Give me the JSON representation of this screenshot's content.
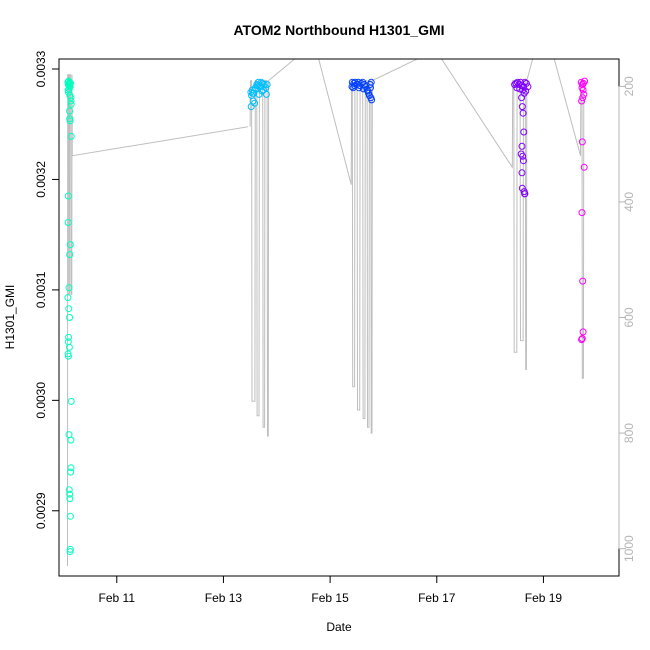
{
  "chart_data": {
    "type": "scatter",
    "title": "ATOM2 Northbound H1301_GMI",
    "xlabel": "Date",
    "ylabel": "H1301_GMI",
    "xlim": [
      "2016-02-09T22:00",
      "2016-02-20T10:00"
    ],
    "ylim": [
      0.00285,
      0.0033
    ],
    "y_ticks": [
      "0.0029",
      "0.0030",
      "0.0031",
      "0.0032",
      "0.0033"
    ],
    "x_ticks": [
      {
        "date": "2016-02-11",
        "label": "Feb 11"
      },
      {
        "date": "2016-02-13",
        "label": "Feb 13"
      },
      {
        "date": "2016-02-15",
        "label": "Feb 15"
      },
      {
        "date": "2016-02-17",
        "label": "Feb 17"
      },
      {
        "date": "2016-02-19",
        "label": "Feb 19"
      }
    ],
    "y2lim": [
      1030,
      170
    ],
    "y2_ticks": [
      "200",
      "400",
      "600",
      "800",
      "1000"
    ],
    "grid": false,
    "point_style": "open-circle",
    "line_color": "#bebebe",
    "series": [
      {
        "color": "#00ffbf",
        "points": [
          [
            "2016-02-10T02:00",
            0.003288
          ],
          [
            "2016-02-10T02:10",
            0.003286
          ],
          [
            "2016-02-10T02:20",
            0.003289
          ],
          [
            "2016-02-10T02:30",
            0.003287
          ],
          [
            "2016-02-10T02:40",
            0.003285
          ],
          [
            "2016-02-10T02:50",
            0.003288
          ],
          [
            "2016-02-10T03:00",
            0.003284
          ],
          [
            "2016-02-10T03:10",
            0.003287
          ],
          [
            "2016-02-10T02:05",
            0.003281
          ],
          [
            "2016-02-10T02:15",
            0.003279
          ],
          [
            "2016-02-10T02:35",
            0.003282
          ],
          [
            "2016-02-10T02:55",
            0.003276
          ],
          [
            "2016-02-10T03:20",
            0.003274
          ],
          [
            "2016-02-10T03:25",
            0.003271
          ],
          [
            "2016-02-10T03:30",
            0.003268
          ],
          [
            "2016-02-10T02:45",
            0.003262
          ],
          [
            "2016-02-10T02:50",
            0.003255
          ],
          [
            "2016-02-10T03:00",
            0.003253
          ],
          [
            "2016-02-10T03:30",
            0.003239
          ],
          [
            "2016-02-10T02:10",
            0.003185
          ],
          [
            "2016-02-10T02:05",
            0.003161
          ],
          [
            "2016-02-10T03:05",
            0.003141
          ],
          [
            "2016-02-10T02:50",
            0.003132
          ],
          [
            "2016-02-10T02:30",
            0.003102
          ],
          [
            "2016-02-10T02:00",
            0.003093
          ],
          [
            "2016-02-10T02:25",
            0.003083
          ],
          [
            "2016-02-10T02:45",
            0.003075
          ],
          [
            "2016-02-10T02:10",
            0.003053
          ],
          [
            "2016-02-10T02:40",
            0.003048
          ],
          [
            "2016-02-10T02:05",
            0.003042
          ],
          [
            "2016-02-10T02:15",
            0.00304
          ],
          [
            "2016-02-10T02:20",
            0.003057
          ],
          [
            "2016-02-10T03:30",
            0.002999
          ],
          [
            "2016-02-10T02:30",
            0.002969
          ],
          [
            "2016-02-10T03:20",
            0.002964
          ],
          [
            "2016-02-10T03:15",
            0.002935
          ],
          [
            "2016-02-10T03:25",
            0.002939
          ],
          [
            "2016-02-10T02:35",
            0.002919
          ],
          [
            "2016-02-10T02:45",
            0.002915
          ],
          [
            "2016-02-10T02:55",
            0.002911
          ],
          [
            "2016-02-10T03:10",
            0.002895
          ],
          [
            "2016-02-10T03:05",
            0.002865
          ],
          [
            "2016-02-10T03:00",
            0.002863
          ]
        ],
        "profile": [
          [
            "2016-02-10T01:50",
            1030
          ],
          [
            "2016-02-10T01:55",
            180
          ],
          [
            "2016-02-10T02:20",
            180
          ],
          [
            "2016-02-10T02:25",
            560
          ],
          [
            "2016-02-10T02:40",
            560
          ],
          [
            "2016-02-10T02:45",
            180
          ],
          [
            "2016-02-10T03:15",
            180
          ],
          [
            "2016-02-10T03:20",
            560
          ],
          [
            "2016-02-10T03:45",
            560
          ],
          [
            "2016-02-10T03:50",
            180
          ],
          [
            "2016-02-10T04:00",
            320
          ],
          [
            "2016-02-13T11:00",
            270
          ]
        ]
      },
      {
        "color": "#00bfff",
        "points": [
          [
            "2016-02-13T12:20",
            0.003279
          ],
          [
            "2016-02-13T13:00",
            0.003281
          ],
          [
            "2016-02-13T13:40",
            0.003278
          ],
          [
            "2016-02-13T14:20",
            0.003283
          ],
          [
            "2016-02-13T15:00",
            0.003286
          ],
          [
            "2016-02-13T15:40",
            0.003288
          ],
          [
            "2016-02-13T16:20",
            0.003285
          ],
          [
            "2016-02-13T17:00",
            0.003288
          ],
          [
            "2016-02-13T17:40",
            0.003287
          ],
          [
            "2016-02-13T18:20",
            0.003286
          ],
          [
            "2016-02-13T19:00",
            0.003283
          ],
          [
            "2016-02-13T19:40",
            0.003286
          ],
          [
            "2016-02-13T12:40",
            0.003276
          ],
          [
            "2016-02-13T13:20",
            0.003271
          ],
          [
            "2016-02-13T14:00",
            0.003269
          ],
          [
            "2016-02-13T12:30",
            0.003266
          ],
          [
            "2016-02-13T14:40",
            0.003282
          ],
          [
            "2016-02-13T16:00",
            0.003277
          ],
          [
            "2016-02-13T18:00",
            0.003281
          ],
          [
            "2016-02-13T15:20",
            0.003285
          ],
          [
            "2016-02-13T16:40",
            0.003284
          ],
          [
            "2016-02-13T17:20",
            0.00328
          ],
          [
            "2016-02-13T13:10",
            0.003278
          ],
          [
            "2016-02-13T19:20",
            0.003277
          ]
        ],
        "profile": [
          [
            "2016-02-13T12:00",
            270
          ],
          [
            "2016-02-13T12:10",
            190
          ],
          [
            "2016-02-13T12:40",
            190
          ],
          [
            "2016-02-13T12:50",
            745
          ],
          [
            "2016-02-13T14:10",
            745
          ],
          [
            "2016-02-13T14:20",
            190
          ],
          [
            "2016-02-13T15:00",
            190
          ],
          [
            "2016-02-13T15:10",
            770
          ],
          [
            "2016-02-13T16:00",
            770
          ],
          [
            "2016-02-13T16:10",
            190
          ],
          [
            "2016-02-13T17:40",
            190
          ],
          [
            "2016-02-13T17:50",
            790
          ],
          [
            "2016-02-13T18:30",
            790
          ],
          [
            "2016-02-13T18:40",
            190
          ],
          [
            "2016-02-13T19:40",
            190
          ],
          [
            "2016-02-13T19:50",
            805
          ],
          [
            "2016-02-13T20:10",
            805
          ],
          [
            "2016-02-13T20:20",
            190
          ],
          [
            "2016-02-14T12:00",
            140
          ]
        ]
      },
      {
        "color": "#0040ff",
        "points": [
          [
            "2016-02-15T10:00",
            0.003288
          ],
          [
            "2016-02-15T10:40",
            0.003287
          ],
          [
            "2016-02-15T11:20",
            0.003288
          ],
          [
            "2016-02-15T12:00",
            0.003286
          ],
          [
            "2016-02-15T12:40",
            0.003288
          ],
          [
            "2016-02-15T13:20",
            0.003285
          ],
          [
            "2016-02-15T14:00",
            0.003287
          ],
          [
            "2016-02-15T14:40",
            0.003288
          ],
          [
            "2016-02-15T15:20",
            0.003286
          ],
          [
            "2016-02-15T16:00",
            0.003284
          ],
          [
            "2016-02-15T16:40",
            0.003281
          ],
          [
            "2016-02-15T17:20",
            0.003278
          ],
          [
            "2016-02-15T18:00",
            0.003286
          ],
          [
            "2016-02-15T18:20",
            0.003274
          ],
          [
            "2016-02-15T18:40",
            0.003272
          ],
          [
            "2016-02-15T09:50",
            0.003284
          ],
          [
            "2016-02-15T10:20",
            0.003283
          ],
          [
            "2016-02-15T11:00",
            0.003285
          ],
          [
            "2016-02-15T13:00",
            0.003283
          ],
          [
            "2016-02-15T15:00",
            0.003282
          ],
          [
            "2016-02-15T17:00",
            0.00328
          ],
          [
            "2016-02-15T17:40",
            0.003276
          ],
          [
            "2016-02-15T18:10",
            0.003283
          ],
          [
            "2016-02-15T18:30",
            0.003288
          ]
        ],
        "profile": [
          [
            "2016-02-14T18:00",
            140
          ],
          [
            "2016-02-15T09:30",
            370
          ],
          [
            "2016-02-15T09:40",
            190
          ],
          [
            "2016-02-15T10:00",
            190
          ],
          [
            "2016-02-15T10:10",
            720
          ],
          [
            "2016-02-15T11:00",
            720
          ],
          [
            "2016-02-15T11:10",
            190
          ],
          [
            "2016-02-15T12:10",
            190
          ],
          [
            "2016-02-15T12:20",
            760
          ],
          [
            "2016-02-15T13:20",
            760
          ],
          [
            "2016-02-15T13:30",
            190
          ],
          [
            "2016-02-15T14:40",
            190
          ],
          [
            "2016-02-15T14:50",
            775
          ],
          [
            "2016-02-15T15:40",
            775
          ],
          [
            "2016-02-15T15:50",
            190
          ],
          [
            "2016-02-15T16:40",
            190
          ],
          [
            "2016-02-15T16:50",
            790
          ],
          [
            "2016-02-15T17:30",
            790
          ],
          [
            "2016-02-15T17:40",
            190
          ],
          [
            "2016-02-15T18:20",
            190
          ],
          [
            "2016-02-15T18:30",
            800
          ],
          [
            "2016-02-15T18:50",
            800
          ],
          [
            "2016-02-15T19:00",
            190
          ],
          [
            "2016-02-16T22:00",
            140
          ]
        ]
      },
      {
        "color": "#8000ff",
        "points": [
          [
            "2016-02-18T11:00",
            0.003286
          ],
          [
            "2016-02-18T11:40",
            0.003287
          ],
          [
            "2016-02-18T12:20",
            0.003288
          ],
          [
            "2016-02-18T13:00",
            0.003286
          ],
          [
            "2016-02-18T13:40",
            0.003288
          ],
          [
            "2016-02-18T14:20",
            0.003285
          ],
          [
            "2016-02-18T15:00",
            0.003284
          ],
          [
            "2016-02-18T15:40",
            0.003288
          ],
          [
            "2016-02-18T16:20",
            0.003287
          ],
          [
            "2016-02-18T17:00",
            0.003284
          ],
          [
            "2016-02-18T12:00",
            0.003283
          ],
          [
            "2016-02-18T13:20",
            0.003282
          ],
          [
            "2016-02-18T14:40",
            0.003281
          ],
          [
            "2016-02-18T16:00",
            0.00328
          ],
          [
            "2016-02-18T15:20",
            0.003278
          ],
          [
            "2016-02-18T14:10",
            0.003274
          ],
          [
            "2016-02-18T14:30",
            0.003266
          ],
          [
            "2016-02-18T14:50",
            0.00326
          ],
          [
            "2016-02-18T15:10",
            0.003243
          ],
          [
            "2016-02-18T14:20",
            0.00323
          ],
          [
            "2016-02-18T14:00",
            0.003223
          ],
          [
            "2016-02-18T14:40",
            0.003221
          ],
          [
            "2016-02-18T15:00",
            0.003217
          ],
          [
            "2016-02-18T14:20",
            0.003206
          ],
          [
            "2016-02-18T14:30",
            0.003192
          ],
          [
            "2016-02-18T15:20",
            0.003189
          ],
          [
            "2016-02-18T15:30",
            0.003187
          ],
          [
            "2016-02-18T15:40",
            0.003187
          ]
        ],
        "profile": [
          [
            "2016-02-17T00:00",
            140
          ],
          [
            "2016-02-18T10:00",
            340
          ],
          [
            "2016-02-18T10:10",
            190
          ],
          [
            "2016-02-18T10:40",
            190
          ],
          [
            "2016-02-18T10:50",
            660
          ],
          [
            "2016-02-18T12:00",
            660
          ],
          [
            "2016-02-18T12:10",
            190
          ],
          [
            "2016-02-18T13:30",
            190
          ],
          [
            "2016-02-18T13:40",
            640
          ],
          [
            "2016-02-18T14:50",
            640
          ],
          [
            "2016-02-18T15:00",
            190
          ],
          [
            "2016-02-18T15:50",
            190
          ],
          [
            "2016-02-18T16:00",
            690
          ],
          [
            "2016-02-18T16:20",
            690
          ],
          [
            "2016-02-18T16:30",
            190
          ],
          [
            "2016-02-18T20:00",
            140
          ]
        ]
      },
      {
        "color": "#ff00ff",
        "points": [
          [
            "2016-02-19T17:00",
            0.003288
          ],
          [
            "2016-02-19T17:30",
            0.003286
          ],
          [
            "2016-02-19T18:00",
            0.003287
          ],
          [
            "2016-02-19T18:30",
            0.003289
          ],
          [
            "2016-02-19T17:20",
            0.003283
          ],
          [
            "2016-02-19T17:50",
            0.003281
          ],
          [
            "2016-02-19T18:10",
            0.003277
          ],
          [
            "2016-02-19T17:40",
            0.003274
          ],
          [
            "2016-02-19T17:10",
            0.003271
          ],
          [
            "2016-02-19T17:30",
            0.003234
          ],
          [
            "2016-02-19T18:20",
            0.003211
          ],
          [
            "2016-02-19T17:20",
            0.00317
          ],
          [
            "2016-02-19T17:40",
            0.003108
          ],
          [
            "2016-02-19T17:50",
            0.003062
          ],
          [
            "2016-02-19T17:30",
            0.003056
          ],
          [
            "2016-02-19T17:10",
            0.003055
          ]
        ],
        "profile": [
          [
            "2016-02-19T04:00",
            140
          ],
          [
            "2016-02-19T16:40",
            320
          ],
          [
            "2016-02-19T16:50",
            190
          ],
          [
            "2016-02-19T17:20",
            190
          ],
          [
            "2016-02-19T17:30",
            705
          ],
          [
            "2016-02-19T18:00",
            705
          ],
          [
            "2016-02-19T18:10",
            190
          ],
          [
            "2016-02-19T18:40",
            190
          ]
        ]
      }
    ]
  }
}
